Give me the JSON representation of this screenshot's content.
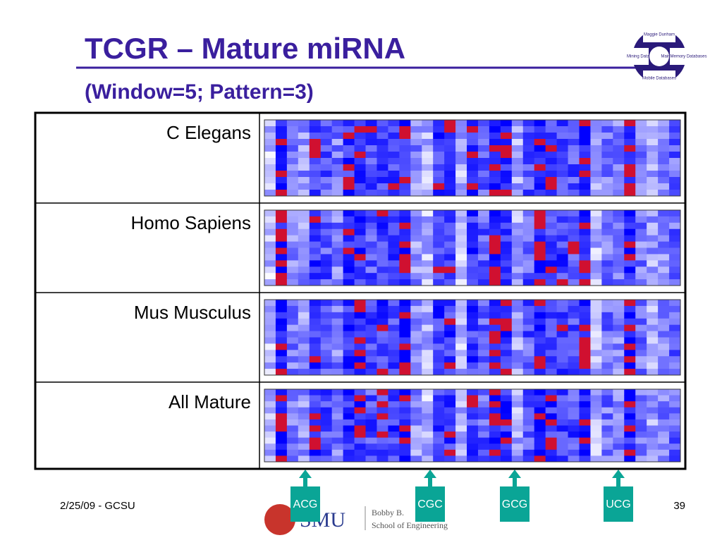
{
  "header": {
    "title": "TCGR – Mature miRNA",
    "subtitle": "(Window=5; Pattern=3)"
  },
  "logo": {
    "top": "Maggie Dunham",
    "left": "Mining Data",
    "right": "MainMemory Databases",
    "bottom": "Mobile Databases"
  },
  "table": {
    "rows": [
      [
        "C Elegans"
      ],
      [
        "Homo Sapiens"
      ],
      [
        "Mus Musculus"
      ],
      [
        "All Mature"
      ]
    ]
  },
  "markers": [
    "ACG",
    "CGC",
    "GCG",
    "UCG"
  ],
  "footer": {
    "date": "2/25/09 - GCSU",
    "page": "39",
    "school": "SMU",
    "name": "Bobby B.",
    "department": "School of Engineering"
  }
}
